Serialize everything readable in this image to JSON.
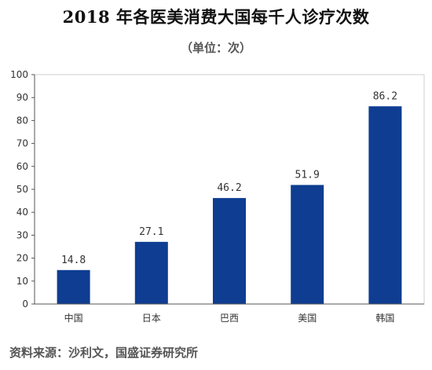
{
  "chart_data": {
    "type": "bar",
    "title": "2018 年各医美消费大国每千人诊疗次数",
    "subtitle": "（单位：次）",
    "categories": [
      "中国",
      "日本",
      "巴西",
      "美国",
      "韩国"
    ],
    "values": [
      14.8,
      27.1,
      46.2,
      51.9,
      86.2
    ],
    "value_labels": [
      "14.8",
      "27.1",
      "46.2",
      "51.9",
      "86.2"
    ],
    "xlabel": "",
    "ylabel": "",
    "ylim": [
      0,
      100
    ],
    "yticks": [
      0,
      10,
      20,
      30,
      40,
      50,
      60,
      70,
      80,
      90,
      100
    ],
    "grid": false,
    "bar_color": "#0e3d91",
    "source": "资料来源：沙利文，国盛证券研究所"
  }
}
